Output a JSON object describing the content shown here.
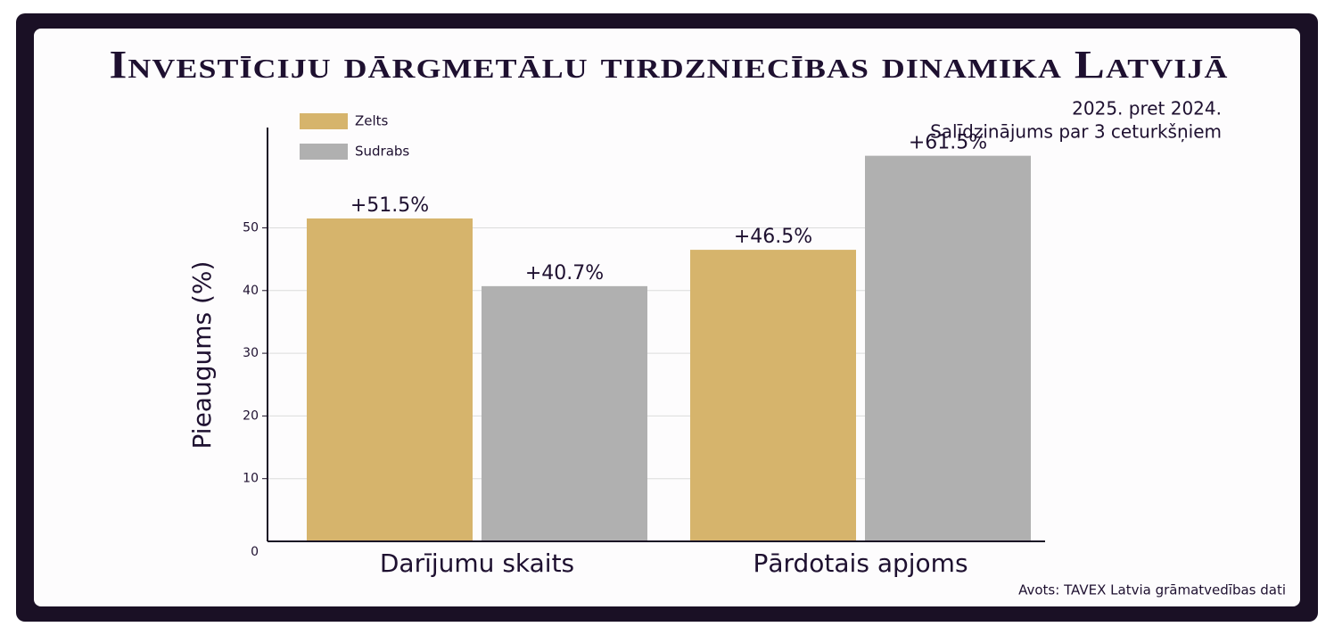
{
  "chart_data": {
    "type": "bar",
    "title": "Investīciju dārgmetālu tirdzniecības dinamika Latvijā",
    "subtitle": [
      "2025. pret 2024.",
      "Salīdzinājums par 3 ceturkšņiem"
    ],
    "y_label": "Pieaugums (%)",
    "source": "Avots: TAVEX Latvia grāmatvedības dati",
    "categories": [
      "Darījumu skaits",
      "Pārdotais apjoms"
    ],
    "series": [
      {
        "name": "Zelts",
        "color": "#d6b46c",
        "values": [
          51.5,
          46.5
        ],
        "value_labels": [
          "+51.5%",
          "+46.5%"
        ]
      },
      {
        "name": "Sudrabs",
        "color": "#b0b0b0",
        "values": [
          40.7,
          61.5
        ],
        "value_labels": [
          "+40.7%",
          "+61.5%"
        ]
      }
    ],
    "ylim": [
      0,
      66
    ],
    "yticks": [
      0,
      10,
      20,
      30,
      40,
      50
    ],
    "grid": true,
    "legend": "top-left"
  }
}
